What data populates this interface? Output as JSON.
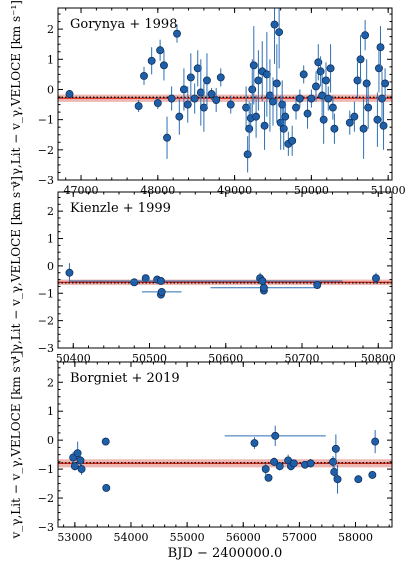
{
  "figure": {
    "xlabel": "BJD − 2400000.0",
    "ylabel": "v_γ,Lit − v_γ,VELOCE [km s⁻¹]",
    "colors": {
      "point": "#1f5fa8",
      "errorbar": "#2c6fb3",
      "band": "#e07a6f",
      "line": "#d62a1a",
      "dotted": "#000000"
    }
  },
  "chart_data": [
    {
      "type": "scatter",
      "title": "Gorynya + 1998",
      "xlim": [
        46700,
        51050
      ],
      "ylim": [
        -3,
        2.7
      ],
      "xticks": [
        47000,
        48000,
        49000,
        50000,
        51000
      ],
      "yticks": [
        -3,
        -2,
        -1,
        0,
        1,
        2
      ],
      "offset": -0.29,
      "band": 0.12,
      "dotted": -0.26,
      "points": [
        {
          "x": 46850,
          "y": -0.15,
          "e": 0.1
        },
        {
          "x": 47750,
          "y": -0.55,
          "e": 0.2
        },
        {
          "x": 47820,
          "y": 0.45,
          "e": 0.3
        },
        {
          "x": 47920,
          "y": 0.95,
          "e": 0.45
        },
        {
          "x": 48000,
          "y": -0.45,
          "e": 0.2
        },
        {
          "x": 48030,
          "y": 1.3,
          "e": 0.35
        },
        {
          "x": 48080,
          "y": 0.8,
          "e": 0.5
        },
        {
          "x": 48120,
          "y": -1.6,
          "e": 0.7
        },
        {
          "x": 48180,
          "y": -0.3,
          "e": 0.4
        },
        {
          "x": 48250,
          "y": 1.85,
          "e": 0.3
        },
        {
          "x": 48280,
          "y": -0.9,
          "e": 0.6
        },
        {
          "x": 48340,
          "y": 0.0,
          "e": 0.7
        },
        {
          "x": 48390,
          "y": -0.5,
          "e": 0.6
        },
        {
          "x": 48430,
          "y": 0.4,
          "e": 0.8
        },
        {
          "x": 48480,
          "y": -0.3,
          "e": 0.5
        },
        {
          "x": 48520,
          "y": 0.7,
          "e": 0.6
        },
        {
          "x": 48560,
          "y": -0.1,
          "e": 1.1
        },
        {
          "x": 48600,
          "y": -0.6,
          "e": 0.8
        },
        {
          "x": 48640,
          "y": 0.3,
          "e": 0.9
        },
        {
          "x": 48700,
          "y": -0.15,
          "e": 0.2
        },
        {
          "x": 48760,
          "y": -0.35,
          "e": 0.4
        },
        {
          "x": 48820,
          "y": 0.4,
          "e": 0.3
        },
        {
          "x": 48950,
          "y": -0.5,
          "e": 0.3
        },
        {
          "x": 49150,
          "y": -0.6,
          "e": 0.7
        },
        {
          "x": 49170,
          "y": -2.15,
          "e": 0.6
        },
        {
          "x": 49190,
          "y": -1.3,
          "e": 0.9
        },
        {
          "x": 49210,
          "y": -0.95,
          "e": 0.5
        },
        {
          "x": 49230,
          "y": 0.0,
          "e": 1.0
        },
        {
          "x": 49250,
          "y": 0.8,
          "e": 1.3
        },
        {
          "x": 49280,
          "y": -0.9,
          "e": 0.7
        },
        {
          "x": 49310,
          "y": 0.3,
          "e": 1.0
        },
        {
          "x": 49360,
          "y": 0.6,
          "e": 1.0
        },
        {
          "x": 49390,
          "y": -1.2,
          "e": 0.8
        },
        {
          "x": 49420,
          "y": 0.5,
          "e": 1.4
        },
        {
          "x": 49460,
          "y": -0.2,
          "e": 1.2
        },
        {
          "x": 49500,
          "y": -0.4,
          "e": 0.8
        },
        {
          "x": 49520,
          "y": 2.15,
          "e": 1.3
        },
        {
          "x": 49550,
          "y": 0.2,
          "e": 1.3
        },
        {
          "x": 49580,
          "y": 1.9,
          "e": 1.2
        },
        {
          "x": 49600,
          "y": -1.1,
          "e": 0.9
        },
        {
          "x": 49620,
          "y": -0.5,
          "e": 0.8
        },
        {
          "x": 49640,
          "y": -1.3,
          "e": 0.7
        },
        {
          "x": 49660,
          "y": -0.9,
          "e": 0.5
        },
        {
          "x": 49700,
          "y": -1.8,
          "e": 0.4
        },
        {
          "x": 49750,
          "y": -1.7,
          "e": 0.5
        },
        {
          "x": 49800,
          "y": -0.6,
          "e": 0.4
        },
        {
          "x": 49850,
          "y": -0.3,
          "e": 0.3
        },
        {
          "x": 49900,
          "y": 0.5,
          "e": 0.3
        },
        {
          "x": 49950,
          "y": -0.8,
          "e": 0.5
        },
        {
          "x": 50000,
          "y": -0.3,
          "e": 0.3
        },
        {
          "x": 50060,
          "y": 0.1,
          "e": 0.5
        },
        {
          "x": 50090,
          "y": 0.9,
          "e": 0.6
        },
        {
          "x": 50120,
          "y": 0.6,
          "e": 0.5
        },
        {
          "x": 50140,
          "y": -0.2,
          "e": 0.8
        },
        {
          "x": 50160,
          "y": -1.0,
          "e": 0.8
        },
        {
          "x": 50190,
          "y": 0.3,
          "e": 0.6
        },
        {
          "x": 50220,
          "y": -0.3,
          "e": 0.4
        },
        {
          "x": 50250,
          "y": 0.7,
          "e": 0.8
        },
        {
          "x": 50280,
          "y": -0.6,
          "e": 0.4
        },
        {
          "x": 50300,
          "y": -1.3,
          "e": 0.5
        },
        {
          "x": 50500,
          "y": -1.1,
          "e": 0.4
        },
        {
          "x": 50560,
          "y": -0.9,
          "e": 0.5
        },
        {
          "x": 50600,
          "y": 0.3,
          "e": 0.6
        },
        {
          "x": 50640,
          "y": 1.0,
          "e": 0.8
        },
        {
          "x": 50680,
          "y": -1.3,
          "e": 1.0
        },
        {
          "x": 50700,
          "y": 1.8,
          "e": 0.5
        },
        {
          "x": 50720,
          "y": 0.2,
          "e": 0.8
        },
        {
          "x": 50740,
          "y": -0.6,
          "e": 0.7
        },
        {
          "x": 50860,
          "y": -1.0,
          "e": 0.9
        },
        {
          "x": 50880,
          "y": 0.7,
          "e": 0.8
        },
        {
          "x": 50900,
          "y": 1.4,
          "e": 0.7
        },
        {
          "x": 50920,
          "y": -0.3,
          "e": 0.9
        },
        {
          "x": 50940,
          "y": -1.2,
          "e": 0.8
        },
        {
          "x": 50960,
          "y": 0.2,
          "e": 0.5
        }
      ]
    },
    {
      "type": "scatter",
      "title": "Kienzle + 1999",
      "xlim": [
        50380,
        50818
      ],
      "ylim": [
        -3,
        2.7
      ],
      "xticks": [
        50400,
        50500,
        50600,
        50700,
        50800
      ],
      "yticks": [
        -3,
        -2,
        -1,
        0,
        1,
        2
      ],
      "offset": -0.6,
      "band": 0.1,
      "dotted": -0.62,
      "points": [
        {
          "x": 50395,
          "y": -0.25,
          "e": 0.35,
          "xe": 0
        },
        {
          "x": 50480,
          "y": -0.6,
          "e": 0.1,
          "xe": 0
        },
        {
          "x": 50495,
          "y": -0.45,
          "e": 0.1,
          "xe": 0
        },
        {
          "x": 50510,
          "y": -0.5,
          "e": 0.15,
          "xe": 0
        },
        {
          "x": 50515,
          "y": -0.55,
          "e": 0.05,
          "xe": 120
        },
        {
          "x": 50515,
          "y": -1.05,
          "e": 0.1,
          "xe": 0
        },
        {
          "x": 50516,
          "y": -0.95,
          "e": 0.05,
          "xe": 26
        },
        {
          "x": 50645,
          "y": -0.45,
          "e": 0.2,
          "xe": 0
        },
        {
          "x": 50648,
          "y": -0.55,
          "e": 0.05,
          "xe": 105
        },
        {
          "x": 50650,
          "y": -0.9,
          "e": 0.1,
          "xe": 0
        },
        {
          "x": 50650,
          "y": -0.8,
          "e": 0.05,
          "xe": 70
        },
        {
          "x": 50720,
          "y": -0.7,
          "e": 0.05,
          "xe": 0
        },
        {
          "x": 50797,
          "y": -0.45,
          "e": 0.2,
          "xe": 0
        }
      ]
    },
    {
      "type": "scatter",
      "title": "Borgniet + 2019",
      "xlim": [
        52700,
        58650
      ],
      "ylim": [
        -3,
        2.7
      ],
      "xticks": [
        53000,
        54000,
        55000,
        56000,
        57000,
        58000
      ],
      "yticks": [
        -3,
        -2,
        -1,
        0,
        1,
        2
      ],
      "offset": -0.8,
      "band": 0.14,
      "dotted": -0.78,
      "points": [
        {
          "x": 52970,
          "y": -0.6,
          "e": 0.2,
          "xe": 0
        },
        {
          "x": 53000,
          "y": -0.9,
          "e": 0.15,
          "xe": 0
        },
        {
          "x": 53050,
          "y": -0.45,
          "e": 0.4,
          "xe": 0
        },
        {
          "x": 53100,
          "y": -0.7,
          "e": 0.2,
          "xe": 0
        },
        {
          "x": 53120,
          "y": -1.0,
          "e": 0.2,
          "xe": 0
        },
        {
          "x": 53550,
          "y": -0.05,
          "e": 0.1,
          "xe": 0
        },
        {
          "x": 53560,
          "y": -1.65,
          "e": 0.1,
          "xe": 0
        },
        {
          "x": 56200,
          "y": -0.1,
          "e": 0.2,
          "xe": 0
        },
        {
          "x": 56400,
          "y": -1.0,
          "e": 0.2,
          "xe": 0
        },
        {
          "x": 56450,
          "y": -1.3,
          "e": 0.1,
          "xe": 0
        },
        {
          "x": 56550,
          "y": -0.75,
          "e": 0.15,
          "xe": 0
        },
        {
          "x": 56570,
          "y": 0.15,
          "e": 0.35,
          "xe": 900
        },
        {
          "x": 56650,
          "y": -0.9,
          "e": 0.15,
          "xe": 0
        },
        {
          "x": 56800,
          "y": -0.7,
          "e": 0.2,
          "xe": 0
        },
        {
          "x": 56850,
          "y": -0.9,
          "e": 0.15,
          "xe": 0
        },
        {
          "x": 56900,
          "y": -0.8,
          "e": 0.1,
          "xe": 0
        },
        {
          "x": 57100,
          "y": -0.85,
          "e": 0.1,
          "xe": 0
        },
        {
          "x": 57200,
          "y": -0.8,
          "e": 0.15,
          "xe": 0
        },
        {
          "x": 57600,
          "y": -0.75,
          "e": 0.2,
          "xe": 0
        },
        {
          "x": 57620,
          "y": -1.1,
          "e": 0.3,
          "xe": 0
        },
        {
          "x": 57650,
          "y": -0.3,
          "e": 0.5,
          "xe": 0
        },
        {
          "x": 57680,
          "y": -1.35,
          "e": 0.5,
          "xe": 0
        },
        {
          "x": 58050,
          "y": -1.35,
          "e": 0.1,
          "xe": 0
        },
        {
          "x": 58300,
          "y": -1.2,
          "e": 0.1,
          "xe": 0
        },
        {
          "x": 58350,
          "y": -0.05,
          "e": 0.4,
          "xe": 0
        }
      ]
    }
  ]
}
